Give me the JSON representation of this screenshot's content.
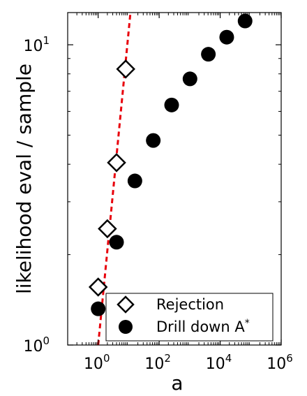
{
  "chart_data": {
    "type": "scatter",
    "xlabel": "a",
    "ylabel": "likelihood eval / sample",
    "xscale": "log",
    "yscale": "log",
    "xlim": [
      0.1,
      1000000
    ],
    "ylim": [
      1,
      12.8
    ],
    "x_ticks": [
      {
        "value": 1,
        "label": "10",
        "exp": "0"
      },
      {
        "value": 100,
        "label": "10",
        "exp": "2"
      },
      {
        "value": 10000,
        "label": "10",
        "exp": "4"
      },
      {
        "value": 1000000,
        "label": "10",
        "exp": "6"
      }
    ],
    "y_ticks": [
      {
        "value": 1,
        "label": "10",
        "exp": "0"
      },
      {
        "value": 10,
        "label": "10",
        "exp": "1"
      }
    ],
    "legend_position": "bottom-right",
    "series": [
      {
        "name": "Rejection",
        "marker": "diamond-open",
        "color": "#000000",
        "x": [
          1.0,
          2.0,
          4.0,
          8.0
        ],
        "y": [
          1.56,
          2.44,
          4.05,
          8.3
        ]
      },
      {
        "name": "Drill down A*",
        "marker": "circle-filled",
        "color": "#000000",
        "x": [
          1.0,
          4.0,
          16.0,
          64.0,
          256.0,
          1024.0,
          4096.0,
          16384.0,
          65536.0
        ],
        "y": [
          1.32,
          2.2,
          3.52,
          4.8,
          6.3,
          7.7,
          9.3,
          10.6,
          12.0
        ]
      },
      {
        "name": "",
        "line": "dashed",
        "color": "#e8000b",
        "x": [
          1.0,
          11.6
        ],
        "y": [
          1.0,
          13.0
        ]
      }
    ]
  }
}
